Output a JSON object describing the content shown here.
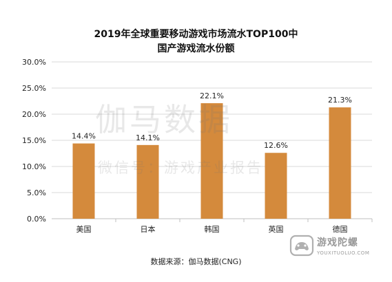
{
  "title": {
    "line1": "2019年全球重要移动游戏市场流水TOP100中",
    "line2": "国产游戏流水份额"
  },
  "chart_data": {
    "type": "bar",
    "categories": [
      "美国",
      "日本",
      "韩国",
      "英国",
      "德国"
    ],
    "values": [
      14.4,
      14.1,
      22.1,
      12.6,
      21.3
    ],
    "data_labels": [
      "14.4%",
      "14.1%",
      "22.1%",
      "12.6%",
      "21.3%"
    ],
    "ylim": [
      0,
      30
    ],
    "y_ticks": [
      "0.0%",
      "5.0%",
      "10.0%",
      "15.0%",
      "20.0%",
      "25.0%",
      "30.0%"
    ],
    "grid": true,
    "legend": "none",
    "xlabel": "",
    "ylabel": ""
  },
  "colors": {
    "bar": "#D48A3C",
    "grid": "#D9D9D9",
    "axis": "#BFBFBF"
  },
  "source": "数据来源：伽马数据(CNG)",
  "watermark": {
    "main": "伽马数据",
    "sub": "微信号：游戏产业报告"
  },
  "logo": {
    "name": "游戏陀螺",
    "url": "YOUXITUOLUO.COM",
    "icon": "gamepad-logo-icon"
  }
}
